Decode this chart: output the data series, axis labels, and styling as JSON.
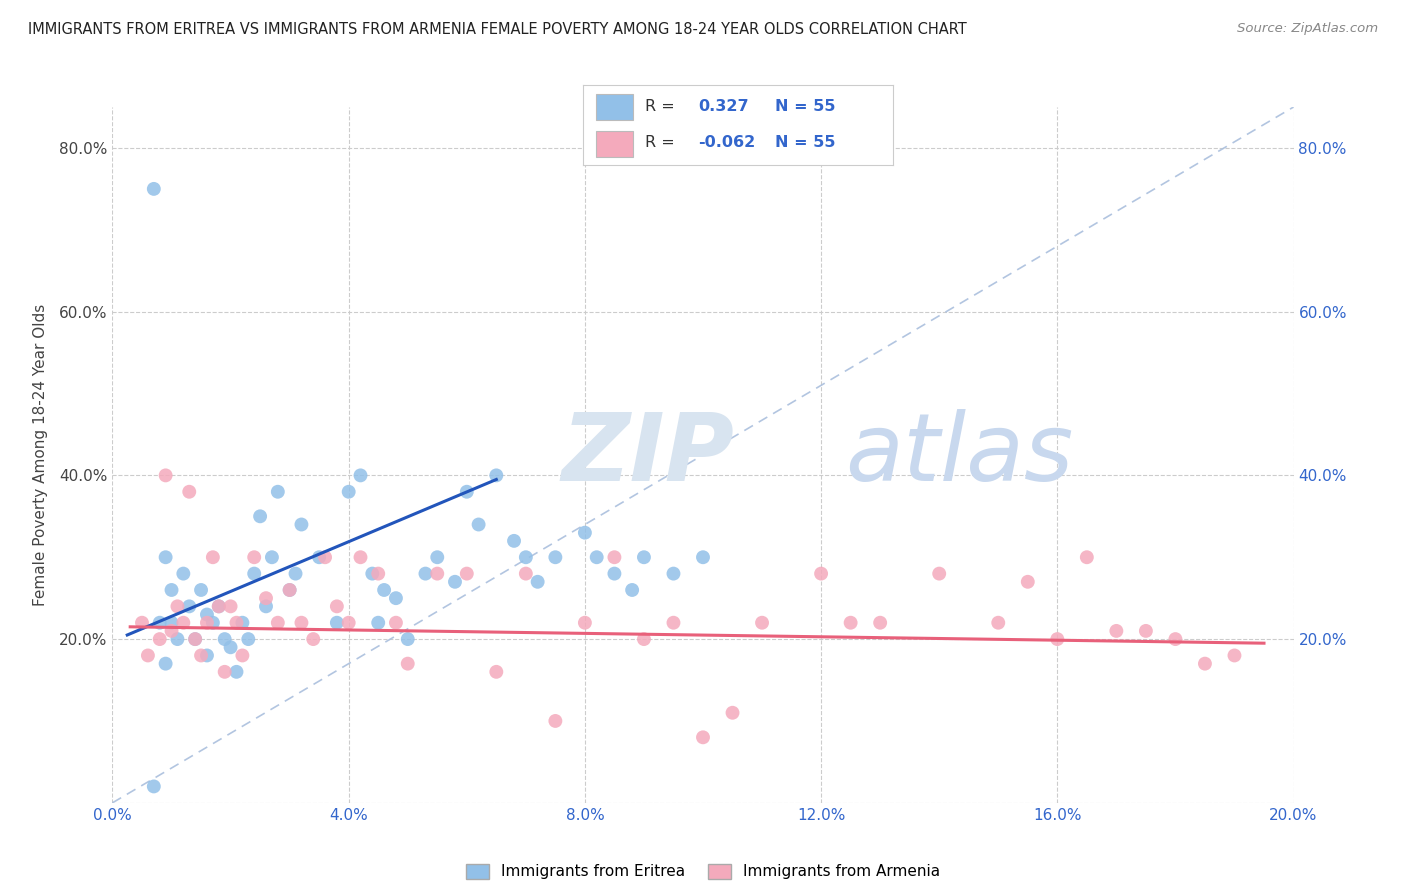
{
  "title": "IMMIGRANTS FROM ERITREA VS IMMIGRANTS FROM ARMENIA FEMALE POVERTY AMONG 18-24 YEAR OLDS CORRELATION CHART",
  "source": "Source: ZipAtlas.com",
  "ylabel": "Female Poverty Among 18-24 Year Olds",
  "xlim": [
    0.0,
    0.2
  ],
  "ylim": [
    0.0,
    0.85
  ],
  "eritrea_color": "#92C0E8",
  "armenia_color": "#F4AABC",
  "eritrea_line_color": "#2255BB",
  "armenia_line_color": "#E8607A",
  "diagonal_color": "#AABFDD",
  "R_eritrea": "0.327",
  "R_armenia": "-0.062",
  "N_eritrea": "55",
  "N_armenia": "55",
  "watermark_ZIP": "ZIP",
  "watermark_atlas": "atlas",
  "background_color": "#FFFFFF",
  "tick_color_blue": "#3366CC",
  "tick_color_dark": "#444444",
  "grid_color": "#CCCCCC",
  "legend_label_eritrea": "Immigrants from Eritrea",
  "legend_label_armenia": "Immigrants from Armenia",
  "eritrea_x": [
    0.007,
    0.007,
    0.008,
    0.009,
    0.009,
    0.01,
    0.01,
    0.011,
    0.012,
    0.013,
    0.014,
    0.015,
    0.016,
    0.016,
    0.017,
    0.018,
    0.019,
    0.02,
    0.021,
    0.022,
    0.023,
    0.024,
    0.025,
    0.026,
    0.027,
    0.028,
    0.03,
    0.031,
    0.032,
    0.035,
    0.038,
    0.04,
    0.042,
    0.044,
    0.045,
    0.046,
    0.048,
    0.05,
    0.053,
    0.055,
    0.058,
    0.06,
    0.062,
    0.065,
    0.068,
    0.07,
    0.072,
    0.075,
    0.08,
    0.082,
    0.085,
    0.088,
    0.09,
    0.095,
    0.1
  ],
  "eritrea_y": [
    0.75,
    0.02,
    0.22,
    0.3,
    0.17,
    0.26,
    0.22,
    0.2,
    0.28,
    0.24,
    0.2,
    0.26,
    0.23,
    0.18,
    0.22,
    0.24,
    0.2,
    0.19,
    0.16,
    0.22,
    0.2,
    0.28,
    0.35,
    0.24,
    0.3,
    0.38,
    0.26,
    0.28,
    0.34,
    0.3,
    0.22,
    0.38,
    0.4,
    0.28,
    0.22,
    0.26,
    0.25,
    0.2,
    0.28,
    0.3,
    0.27,
    0.38,
    0.34,
    0.4,
    0.32,
    0.3,
    0.27,
    0.3,
    0.33,
    0.3,
    0.28,
    0.26,
    0.3,
    0.28,
    0.3
  ],
  "armenia_x": [
    0.005,
    0.006,
    0.008,
    0.009,
    0.01,
    0.011,
    0.012,
    0.013,
    0.014,
    0.015,
    0.016,
    0.017,
    0.018,
    0.019,
    0.02,
    0.021,
    0.022,
    0.024,
    0.026,
    0.028,
    0.03,
    0.032,
    0.034,
    0.036,
    0.038,
    0.04,
    0.042,
    0.045,
    0.048,
    0.05,
    0.055,
    0.06,
    0.065,
    0.07,
    0.075,
    0.08,
    0.085,
    0.09,
    0.095,
    0.1,
    0.105,
    0.11,
    0.12,
    0.125,
    0.13,
    0.14,
    0.15,
    0.155,
    0.16,
    0.165,
    0.17,
    0.175,
    0.18,
    0.185,
    0.19
  ],
  "armenia_y": [
    0.22,
    0.18,
    0.2,
    0.4,
    0.21,
    0.24,
    0.22,
    0.38,
    0.2,
    0.18,
    0.22,
    0.3,
    0.24,
    0.16,
    0.24,
    0.22,
    0.18,
    0.3,
    0.25,
    0.22,
    0.26,
    0.22,
    0.2,
    0.3,
    0.24,
    0.22,
    0.3,
    0.28,
    0.22,
    0.17,
    0.28,
    0.28,
    0.16,
    0.28,
    0.1,
    0.22,
    0.3,
    0.2,
    0.22,
    0.08,
    0.11,
    0.22,
    0.28,
    0.22,
    0.22,
    0.28,
    0.22,
    0.27,
    0.2,
    0.3,
    0.21,
    0.21,
    0.2,
    0.17,
    0.18
  ],
  "eritrea_line_x": [
    0.0025,
    0.065
  ],
  "eritrea_line_y": [
    0.205,
    0.395
  ],
  "armenia_line_x": [
    0.003,
    0.195
  ],
  "armenia_line_y": [
    0.215,
    0.195
  ]
}
